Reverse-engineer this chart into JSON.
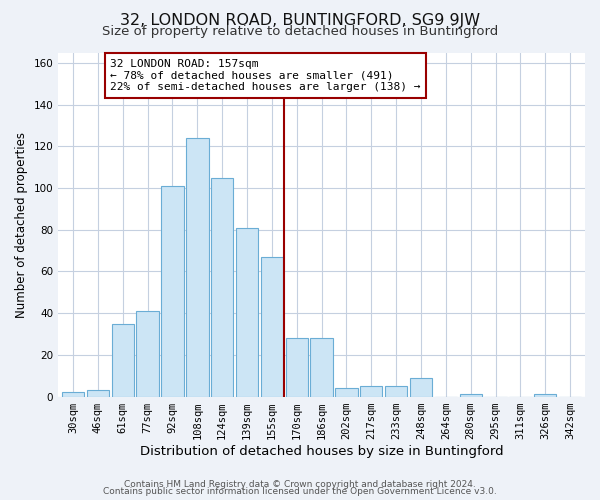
{
  "title": "32, LONDON ROAD, BUNTINGFORD, SG9 9JW",
  "subtitle": "Size of property relative to detached houses in Buntingford",
  "xlabel": "Distribution of detached houses by size in Buntingford",
  "ylabel": "Number of detached properties",
  "bar_labels": [
    "30sqm",
    "46sqm",
    "61sqm",
    "77sqm",
    "92sqm",
    "108sqm",
    "124sqm",
    "139sqm",
    "155sqm",
    "170sqm",
    "186sqm",
    "202sqm",
    "217sqm",
    "233sqm",
    "248sqm",
    "264sqm",
    "280sqm",
    "295sqm",
    "311sqm",
    "326sqm",
    "342sqm"
  ],
  "bar_heights": [
    2,
    3,
    35,
    41,
    101,
    124,
    105,
    81,
    67,
    28,
    28,
    4,
    5,
    5,
    9,
    0,
    1,
    0,
    0,
    1,
    0
  ],
  "bar_color": "#cce5f5",
  "bar_edgecolor": "#6aadd5",
  "vline_color": "#990000",
  "annotation_title": "32 LONDON ROAD: 157sqm",
  "annotation_line1": "← 78% of detached houses are smaller (491)",
  "annotation_line2": "22% of semi-detached houses are larger (138) →",
  "annotation_box_edgecolor": "#990000",
  "ylim": [
    0,
    165
  ],
  "yticks": [
    0,
    20,
    40,
    60,
    80,
    100,
    120,
    140,
    160
  ],
  "footer1": "Contains HM Land Registry data © Crown copyright and database right 2024.",
  "footer2": "Contains public sector information licensed under the Open Government Licence v3.0.",
  "bg_color": "#eef2f8",
  "plot_bg_color": "#ffffff",
  "grid_color": "#c5d0e0",
  "title_fontsize": 11.5,
  "subtitle_fontsize": 9.5,
  "xlabel_fontsize": 9.5,
  "ylabel_fontsize": 8.5,
  "annot_fontsize": 8,
  "tick_fontsize": 7.5,
  "footer_fontsize": 6.5
}
